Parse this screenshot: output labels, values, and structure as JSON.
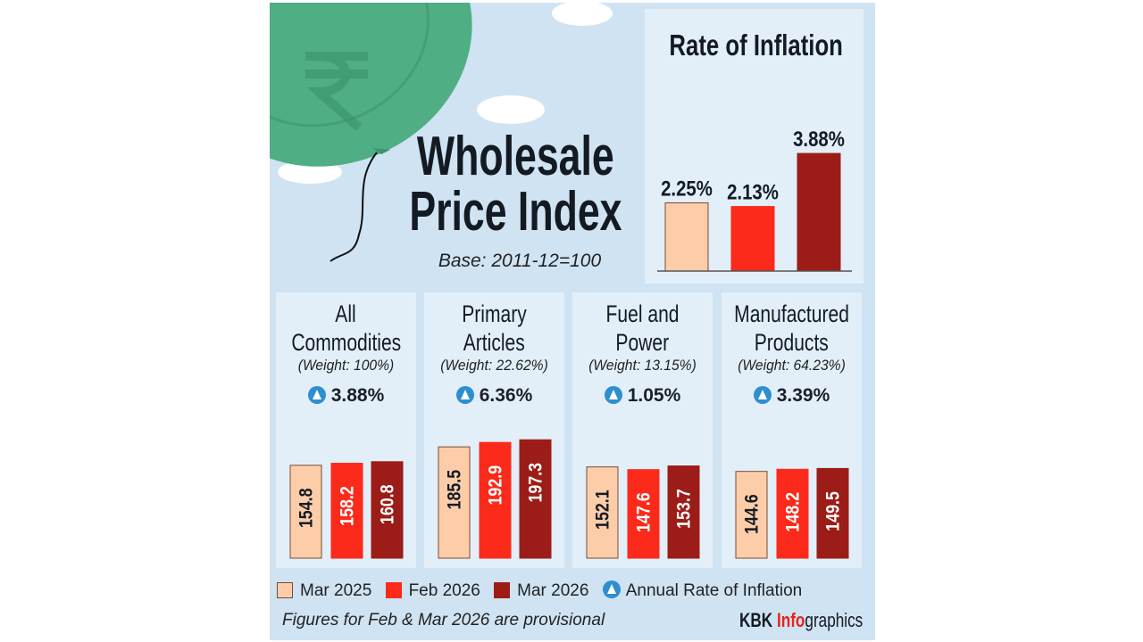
{
  "header": {
    "title_line1": "Wholesale",
    "title_line2": "Price Index",
    "base": "Base: 2011-12=100"
  },
  "colors": {
    "mar2025": "#fdcdaa",
    "feb2026": "#fb2a1a",
    "mar2026": "#9c1c17",
    "arrow": "#2e8fd0",
    "background": "#cfe3f3",
    "panel": "#e2eff9",
    "balloon": "#4fae84"
  },
  "icons": {
    "rate_marker": "up-triangle-circle-icon",
    "balloon": "rupee-balloon-icon"
  },
  "chart_data": [
    {
      "type": "bar",
      "title": "Rate of Inflation",
      "categories": [
        "Mar 2025",
        "Feb 2026",
        "Mar 2026"
      ],
      "values": [
        2.25,
        2.13,
        3.88
      ],
      "labels": [
        "2.25%",
        "2.13%",
        "3.88%"
      ],
      "unit": "%"
    },
    {
      "type": "bar",
      "title": "All Commodities",
      "weight": "(Weight: 100%)",
      "annual_rate": "3.88%",
      "categories": [
        "Mar 2025",
        "Feb 2026",
        "Mar 2026"
      ],
      "values": [
        154.8,
        158.2,
        160.8
      ]
    },
    {
      "type": "bar",
      "title": "Primary Articles",
      "weight": "(Weight: 22.62%)",
      "annual_rate": "6.36%",
      "categories": [
        "Mar 2025",
        "Feb 2026",
        "Mar 2026"
      ],
      "values": [
        185.5,
        192.9,
        197.3
      ]
    },
    {
      "type": "bar",
      "title": "Fuel and Power",
      "weight": "(Weight: 13.15%)",
      "annual_rate": "1.05%",
      "categories": [
        "Mar 2025",
        "Feb 2026",
        "Mar 2026"
      ],
      "values": [
        152.1,
        147.6,
        153.7
      ]
    },
    {
      "type": "bar",
      "title": "Manufactured Products",
      "weight": "(Weight: 64.23%)",
      "annual_rate": "3.39%",
      "categories": [
        "Mar 2025",
        "Feb 2026",
        "Mar 2026"
      ],
      "values": [
        144.6,
        148.2,
        149.5
      ]
    }
  ],
  "panels_titles": [
    [
      "All",
      "Commodities"
    ],
    [
      "Primary",
      "Articles"
    ],
    [
      "Fuel and",
      "Power"
    ],
    [
      "Manufactured",
      "Products"
    ]
  ],
  "legend": {
    "items": [
      "Mar 2025",
      "Feb 2026",
      "Mar 2026"
    ],
    "rate": "Annual Rate of Inflation"
  },
  "footer": {
    "note": "Figures for Feb & Mar 2026 are provisional",
    "brand_a": "KBK ",
    "brand_b": "Info",
    "brand_c": "graphics"
  }
}
